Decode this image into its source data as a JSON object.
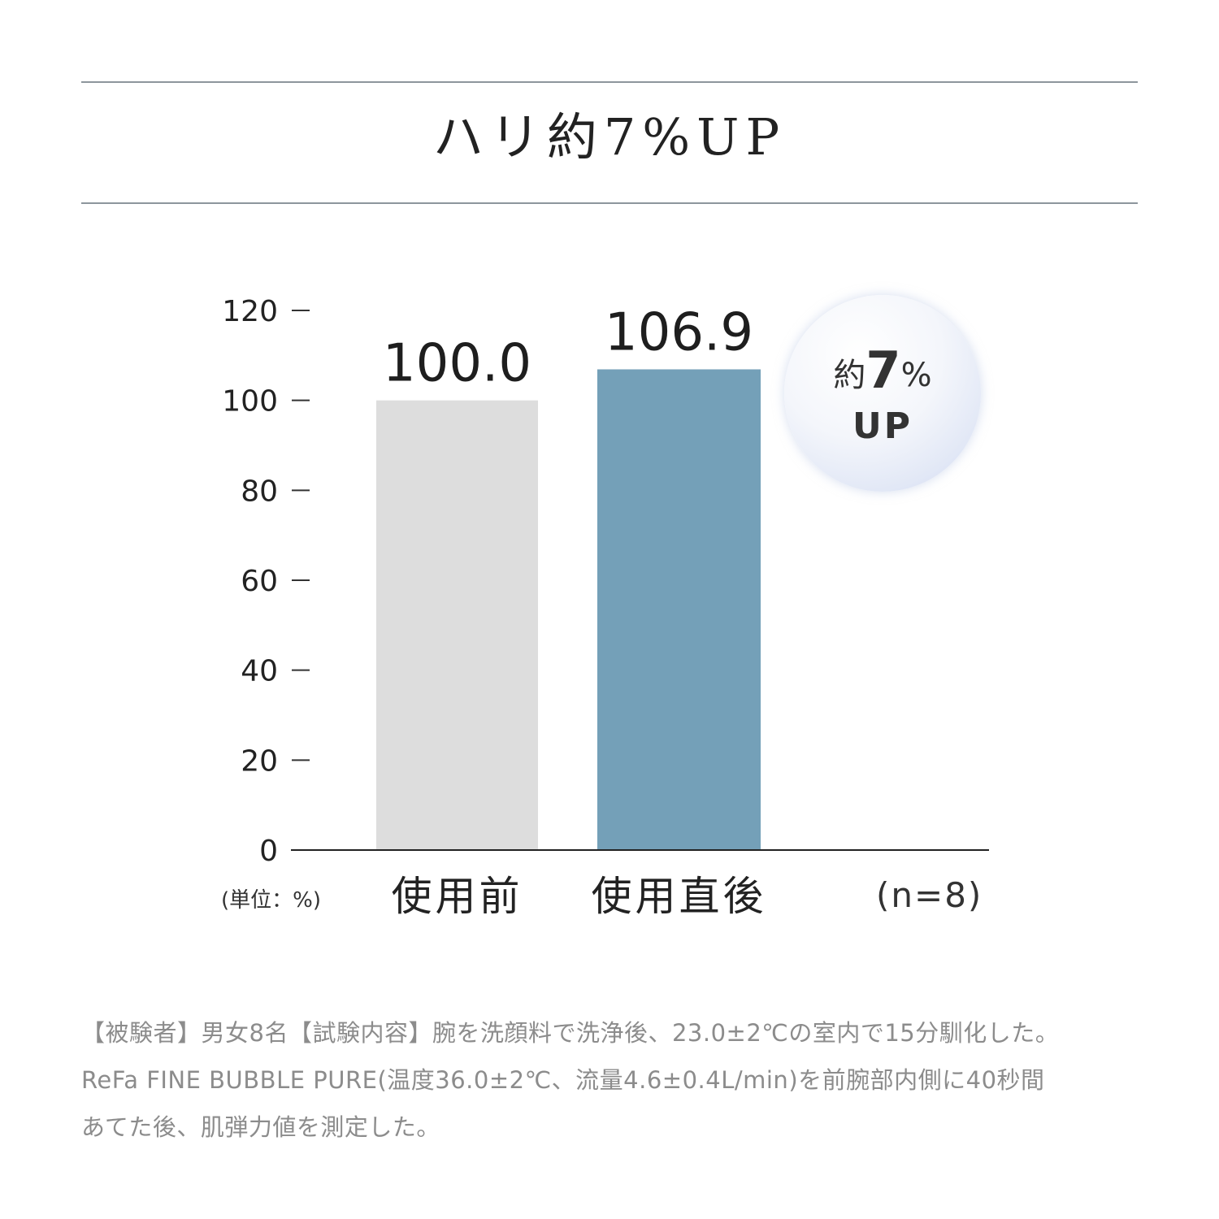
{
  "title": "ハリ約7%UP",
  "badge": {
    "prefix": "約",
    "number": "7",
    "suffix": "%",
    "line2": "UP"
  },
  "unit_label": "(単位：%)",
  "n_label": "(n=8)",
  "footnote": [
    "【被験者】男女8名【試験内容】腕を洗顔料で洗浄後、23.0±2℃の室内で15分馴化した。",
    "ReFa FINE BUBBLE PURE(温度36.0±2℃、流量4.6±0.4L/min)を前腕部内側に40秒間",
    "あてた後、肌弾力値を測定した。"
  ],
  "chart_data": {
    "type": "bar",
    "categories": [
      "使用前",
      "使用直後"
    ],
    "values": [
      100.0,
      106.9
    ],
    "value_labels": [
      "100.0",
      "106.9"
    ],
    "ylim": [
      0,
      120
    ],
    "yticks": [
      0,
      20,
      40,
      60,
      80,
      100,
      120
    ],
    "colors": [
      "#dddddd",
      "#74a0b8"
    ],
    "grid": false,
    "legend": "none"
  }
}
